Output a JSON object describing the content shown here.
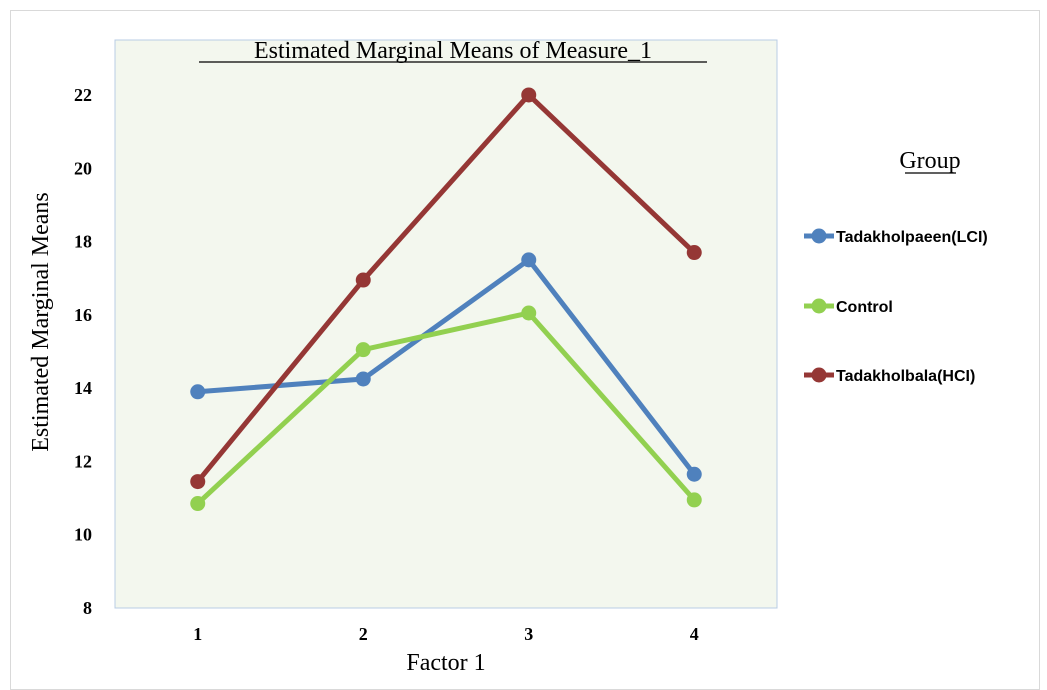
{
  "chart_data": {
    "type": "line",
    "title": "Estimated Marginal Means of  Measure_1",
    "xlabel": "Factor 1",
    "ylabel": "Estimated Marginal Means",
    "categories": [
      "1",
      "2",
      "3",
      "4"
    ],
    "yticks": [
      "8",
      "10",
      "12",
      "14",
      "16",
      "18",
      "20",
      "22"
    ],
    "ylim": [
      8,
      23.5
    ],
    "grid": false,
    "legend_title": "Group",
    "legend_position": "right",
    "plot_background": "#f3f7ee",
    "series": [
      {
        "name": "Tadakholpaeen(LCI)",
        "color": "#4f81bd",
        "values": [
          13.9,
          14.25,
          17.5,
          11.65
        ]
      },
      {
        "name": "Control",
        "color": "#92d050",
        "values": [
          10.85,
          15.05,
          16.05,
          10.95
        ]
      },
      {
        "name": "Tadakholbala(HCI)",
        "color": "#953735",
        "values": [
          11.45,
          16.95,
          22.0,
          17.7
        ]
      }
    ]
  }
}
